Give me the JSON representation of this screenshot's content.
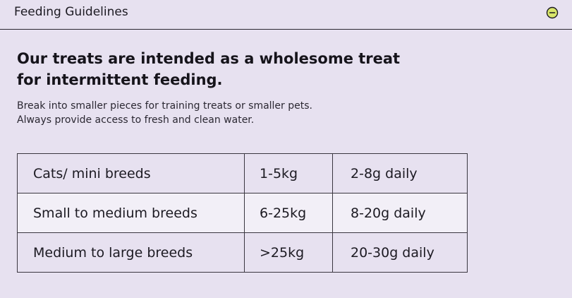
{
  "accordion": {
    "title": "Feeding Guidelines",
    "toggle_icon": "minus-circle-icon"
  },
  "content": {
    "headline_line1": "Our treats are intended as a wholesome treat",
    "headline_line2": "for intermittent feeding.",
    "body_line1": "Break into smaller pieces for training treats or smaller pets.",
    "body_line2": "Always provide access to fresh and clean water."
  },
  "table": {
    "rows": [
      {
        "breed": "Cats/ mini breeds",
        "weight": "1-5kg",
        "amount": "2-8g daily"
      },
      {
        "breed": "Small to medium breeds",
        "weight": "6-25kg",
        "amount": "8-20g daily"
      },
      {
        "breed": "Medium to large breeds",
        "weight": ">25kg",
        "amount": "20-30g daily"
      }
    ]
  },
  "colors": {
    "background": "#e7e1f0",
    "row_highlight": "#f2eff7",
    "toggle_fill": "#d9e66b",
    "text": "#1c1a22"
  }
}
